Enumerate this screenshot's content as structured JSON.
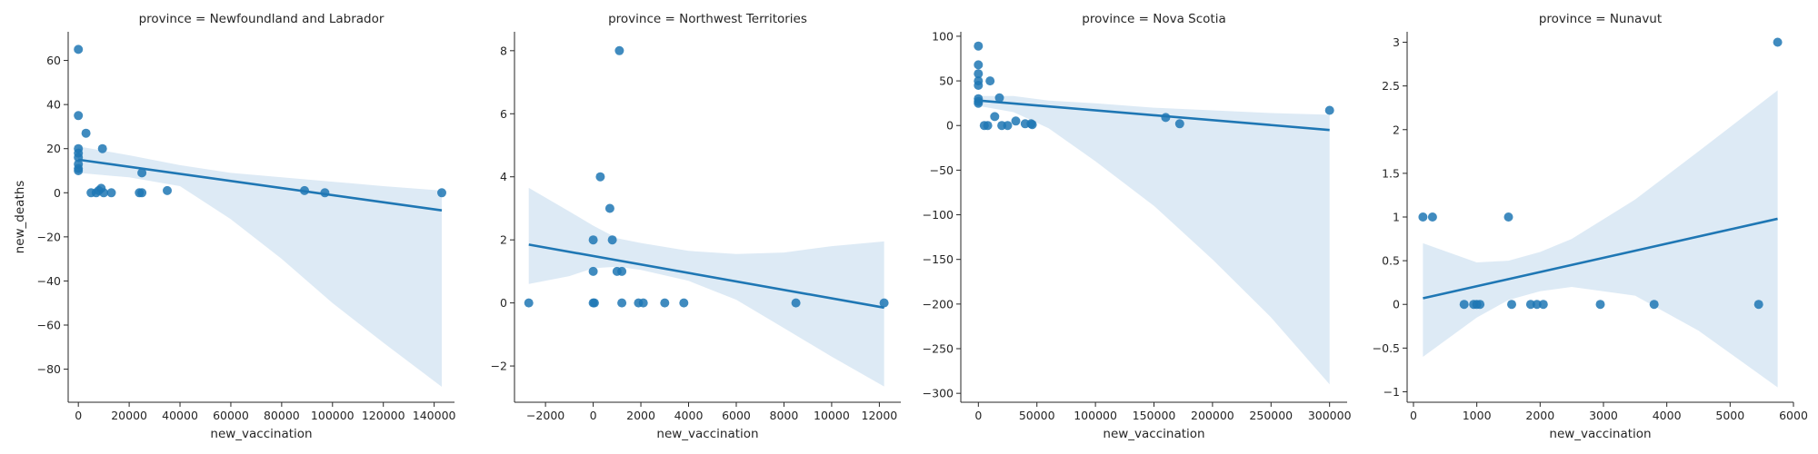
{
  "chart_data": [
    {
      "type": "scatter",
      "title": "province = Newfoundland and Labrador",
      "xlabel": "new_vaccination",
      "ylabel": "new_deaths",
      "xlim": [
        -4000,
        148000
      ],
      "ylim": [
        -95,
        73
      ],
      "xticks": [
        0,
        20000,
        40000,
        60000,
        80000,
        100000,
        120000,
        140000
      ],
      "yticks": [
        -80,
        -60,
        -40,
        -20,
        0,
        20,
        40,
        60
      ],
      "points": [
        [
          0,
          65
        ],
        [
          0,
          35
        ],
        [
          0,
          20
        ],
        [
          0,
          18
        ],
        [
          0,
          16
        ],
        [
          0,
          13
        ],
        [
          0,
          11
        ],
        [
          0,
          10
        ],
        [
          3000,
          27
        ],
        [
          5000,
          0
        ],
        [
          7000,
          0
        ],
        [
          8000,
          1
        ],
        [
          9000,
          2
        ],
        [
          9500,
          20
        ],
        [
          10000,
          0
        ],
        [
          13000,
          0
        ],
        [
          24000,
          0
        ],
        [
          25000,
          0
        ],
        [
          25000,
          9
        ],
        [
          35000,
          1
        ],
        [
          89000,
          1
        ],
        [
          97000,
          0
        ],
        [
          143000,
          0
        ]
      ],
      "regression": {
        "x": [
          0,
          143000
        ],
        "y": [
          15,
          -8
        ]
      },
      "ci": [
        [
          0,
          21,
          9
        ],
        [
          20000,
          17,
          7
        ],
        [
          40000,
          12.5,
          3
        ],
        [
          60000,
          9,
          -12
        ],
        [
          80000,
          7,
          -30
        ],
        [
          100000,
          5,
          -50
        ],
        [
          120000,
          3,
          -68
        ],
        [
          143000,
          1,
          -88
        ]
      ]
    },
    {
      "type": "scatter",
      "title": "province = Northwest Territories",
      "xlabel": "new_vaccination",
      "ylabel": "",
      "xlim": [
        -3300,
        12900
      ],
      "ylim": [
        -3.15,
        8.6
      ],
      "xticks": [
        -2000,
        0,
        2000,
        4000,
        6000,
        8000,
        10000,
        12000
      ],
      "yticks": [
        -2,
        0,
        2,
        4,
        6,
        8
      ],
      "points": [
        [
          -2700,
          0
        ],
        [
          0,
          1
        ],
        [
          0,
          2
        ],
        [
          0,
          0
        ],
        [
          50,
          0
        ],
        [
          300,
          4
        ],
        [
          700,
          3
        ],
        [
          800,
          2
        ],
        [
          1000,
          1
        ],
        [
          1100,
          8
        ],
        [
          1200,
          1
        ],
        [
          1200,
          0
        ],
        [
          1900,
          0
        ],
        [
          2100,
          0
        ],
        [
          3000,
          0
        ],
        [
          3800,
          0
        ],
        [
          8500,
          0
        ],
        [
          12200,
          0
        ]
      ],
      "regression": {
        "x": [
          -2700,
          12200
        ],
        "y": [
          1.85,
          -0.15
        ]
      },
      "ci": [
        [
          -2700,
          3.65,
          0.6
        ],
        [
          -1000,
          2.9,
          0.85
        ],
        [
          0,
          2.45,
          1.1
        ],
        [
          1000,
          2.05,
          1.15
        ],
        [
          2000,
          1.9,
          1.05
        ],
        [
          4000,
          1.65,
          0.7
        ],
        [
          6000,
          1.55,
          0.1
        ],
        [
          8000,
          1.6,
          -0.8
        ],
        [
          10000,
          1.8,
          -1.7
        ],
        [
          12200,
          1.95,
          -2.65
        ]
      ]
    },
    {
      "type": "scatter",
      "title": "province = Nova Scotia",
      "xlabel": "new_vaccination",
      "ylabel": "",
      "xlim": [
        -15000,
        315000
      ],
      "ylim": [
        -310,
        105
      ],
      "xticks": [
        0,
        50000,
        100000,
        150000,
        200000,
        250000,
        300000
      ],
      "yticks": [
        -300,
        -250,
        -200,
        -150,
        -100,
        -50,
        0,
        50,
        100
      ],
      "points": [
        [
          0,
          89
        ],
        [
          0,
          68
        ],
        [
          0,
          58
        ],
        [
          0,
          50
        ],
        [
          0,
          45
        ],
        [
          0,
          30
        ],
        [
          0,
          27
        ],
        [
          0,
          25
        ],
        [
          5000,
          0
        ],
        [
          8000,
          0
        ],
        [
          10000,
          50
        ],
        [
          14000,
          10
        ],
        [
          18000,
          31
        ],
        [
          20000,
          0
        ],
        [
          25000,
          0
        ],
        [
          32000,
          5
        ],
        [
          40000,
          2
        ],
        [
          45000,
          2
        ],
        [
          46000,
          1
        ],
        [
          160000,
          9
        ],
        [
          172000,
          2
        ],
        [
          300000,
          17
        ]
      ],
      "regression": {
        "x": [
          0,
          300000
        ],
        "y": [
          28,
          -5
        ]
      },
      "ci": [
        [
          0,
          33,
          22
        ],
        [
          30000,
          33,
          15
        ],
        [
          60000,
          28,
          -3
        ],
        [
          100000,
          25,
          -40
        ],
        [
          150000,
          20,
          -90
        ],
        [
          200000,
          17,
          -150
        ],
        [
          250000,
          14,
          -215
        ],
        [
          300000,
          12,
          -290
        ]
      ]
    },
    {
      "type": "scatter",
      "title": "province = Nunavut",
      "xlabel": "new_vaccination",
      "ylabel": "",
      "xlim": [
        -100,
        6000
      ],
      "ylim": [
        -1.12,
        3.12
      ],
      "xticks": [
        0,
        1000,
        2000,
        3000,
        4000,
        5000,
        6000
      ],
      "yticks": [
        -1.0,
        -0.5,
        0.0,
        0.5,
        1.0,
        1.5,
        2.0,
        2.5,
        3.0
      ],
      "points": [
        [
          150,
          1
        ],
        [
          300,
          1
        ],
        [
          800,
          0
        ],
        [
          950,
          0
        ],
        [
          1000,
          0
        ],
        [
          1050,
          0
        ],
        [
          1500,
          1
        ],
        [
          1550,
          0
        ],
        [
          1850,
          0
        ],
        [
          1950,
          0
        ],
        [
          2050,
          0
        ],
        [
          2950,
          0
        ],
        [
          3800,
          0
        ],
        [
          5450,
          0
        ],
        [
          5750,
          3
        ]
      ],
      "regression": {
        "x": [
          150,
          5750
        ],
        "y": [
          0.07,
          0.98
        ]
      },
      "ci": [
        [
          150,
          0.7,
          -0.6
        ],
        [
          1000,
          0.48,
          -0.15
        ],
        [
          1500,
          0.5,
          0.05
        ],
        [
          2000,
          0.6,
          0.15
        ],
        [
          2500,
          0.75,
          0.2
        ],
        [
          3500,
          1.2,
          0.1
        ],
        [
          4500,
          1.75,
          -0.3
        ],
        [
          5750,
          2.45,
          -0.95
        ]
      ]
    }
  ]
}
